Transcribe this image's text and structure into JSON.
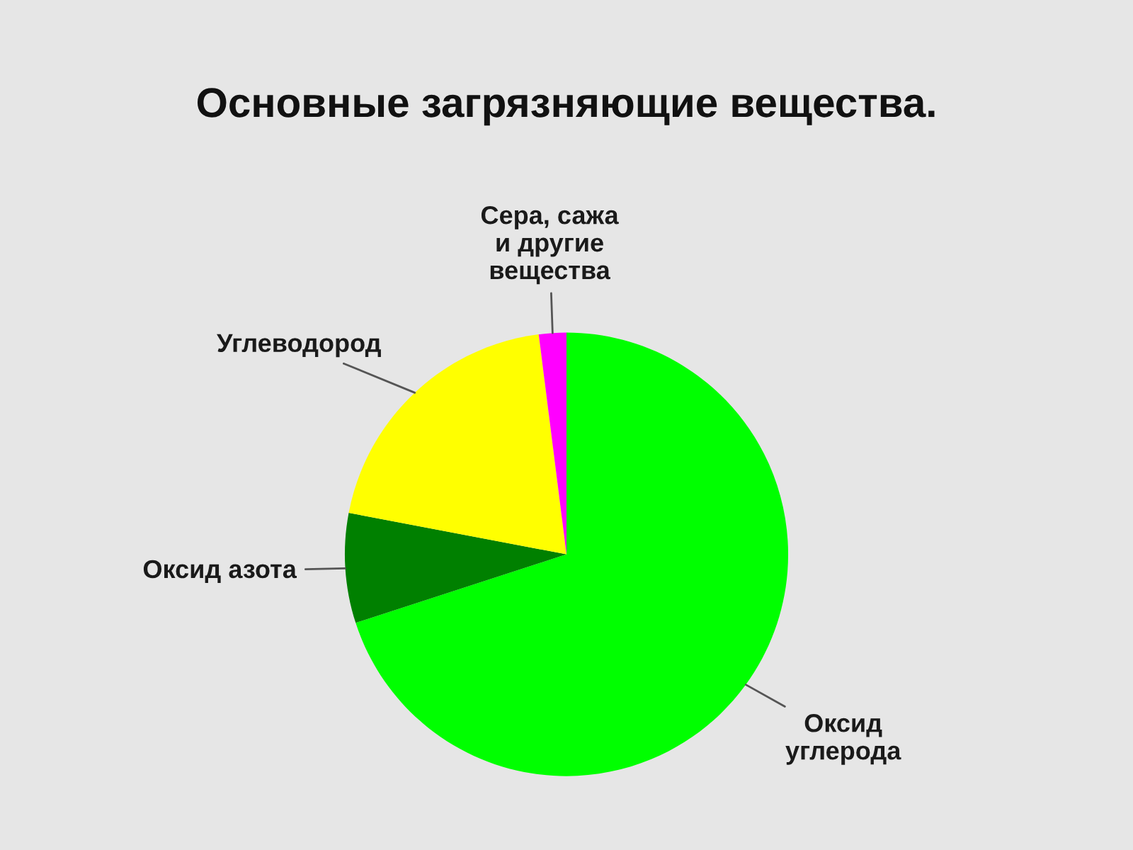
{
  "chart_data": {
    "type": "pie",
    "title": "Основные загрязняющие вещества.",
    "categories": [
      "Оксид\nуглерода",
      "Оксид азота",
      "Углеводород",
      "Сера, сажа\nи другие\nвещества"
    ],
    "values": [
      70,
      8,
      20,
      2
    ],
    "colors": [
      "#00ff00",
      "#008000",
      "#ffff00",
      "#ff00ff"
    ]
  }
}
